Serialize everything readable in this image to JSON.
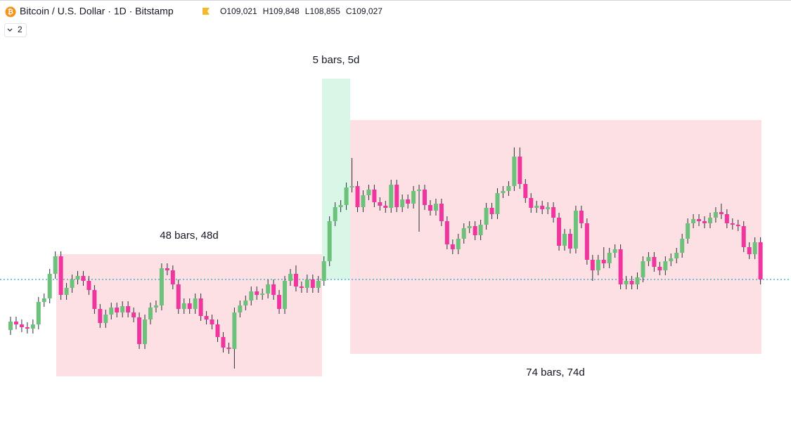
{
  "header": {
    "symbol": "Bitcoin / U.S. Dollar · 1D · Bitstamp",
    "ohlc": [
      {
        "label": "O",
        "value": "109,021"
      },
      {
        "label": "H",
        "value": "109,848"
      },
      {
        "label": "L",
        "value": "108,855"
      },
      {
        "label": "C",
        "value": "109,027"
      }
    ]
  },
  "indicator_count": "2",
  "ranges": [
    {
      "label": "48 bars, 48d"
    },
    {
      "label": "5 bars, 5d"
    },
    {
      "label": "74 bars, 74d"
    }
  ]
}
